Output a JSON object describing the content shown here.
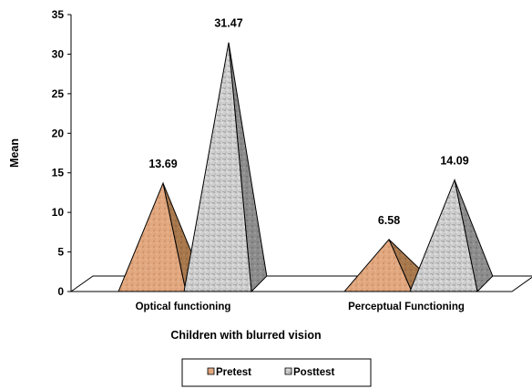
{
  "chart_data": {
    "type": "bar",
    "shape": "3d-pyramid",
    "categories": [
      "Optical functioning",
      "Perceptual Functioning"
    ],
    "series": [
      {
        "name": "Pretest",
        "values": [
          13.69,
          6.58
        ]
      },
      {
        "name": "Posttest",
        "values": [
          31.47,
          14.09
        ]
      }
    ],
    "data_labels": [
      "13.69",
      "31.47",
      "6.58",
      "14.09"
    ],
    "xlabel": "Children with blurred vision",
    "ylabel": "Mean",
    "ylim": [
      0,
      35
    ],
    "yticks": [
      "0",
      "5",
      "10",
      "15",
      "20",
      "25",
      "30",
      "35"
    ],
    "grid": false,
    "legend_position": "bottom",
    "colors": {
      "pretest_left": "#e2a880",
      "pretest_right": "#a8784d",
      "posttest_left": "#c9c9c9",
      "posttest_right": "#8c8c8c",
      "floor": "#ffffff",
      "axis": "#000000"
    }
  }
}
